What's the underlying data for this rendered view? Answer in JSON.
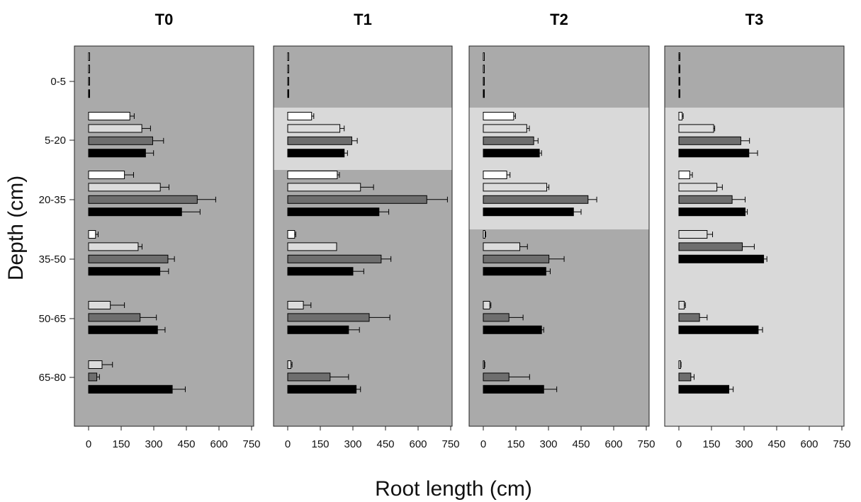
{
  "chart_data": {
    "type": "bar",
    "orientation": "horizontal",
    "xlabel": "Root length (cm)",
    "ylabel": "Depth (cm)",
    "xlim": [
      0,
      750
    ],
    "xticks": [
      "0",
      "150",
      "300",
      "450",
      "600",
      "750"
    ],
    "depth_categories": [
      "0-5",
      "5-20",
      "20-35",
      "35-50",
      "50-65",
      "65-80"
    ],
    "series_colors": [
      "#ffffff",
      "#dcdcdc",
      "#6e6e6e",
      "#000000"
    ],
    "background_colors": {
      "dark": "#aaaaaa",
      "light": "#d9d9d9"
    },
    "panels": [
      {
        "title": "T0",
        "bands": [
          {
            "from": "0-5",
            "to": "65-80",
            "shade": "dark"
          }
        ],
        "groups": [
          {
            "depth": "0-5",
            "bars": [
              {
                "series": 0,
                "value": 2,
                "error": 0
              },
              {
                "series": 1,
                "value": 2,
                "error": 0
              },
              {
                "series": 2,
                "value": 3,
                "error": 0
              },
              {
                "series": 3,
                "value": 3,
                "error": 0
              }
            ]
          },
          {
            "depth": "5-20",
            "bars": [
              {
                "series": 0,
                "value": 190,
                "error": 20
              },
              {
                "series": 1,
                "value": 245,
                "error": 40
              },
              {
                "series": 2,
                "value": 295,
                "error": 50
              },
              {
                "series": 3,
                "value": 262,
                "error": 37
              }
            ]
          },
          {
            "depth": "20-35",
            "bars": [
              {
                "series": 0,
                "value": 165,
                "error": 42
              },
              {
                "series": 1,
                "value": 330,
                "error": 40
              },
              {
                "series": 2,
                "value": 500,
                "error": 85
              },
              {
                "series": 3,
                "value": 428,
                "error": 85
              }
            ]
          },
          {
            "depth": "35-50",
            "bars": [
              {
                "series": 0,
                "value": 32,
                "error": 12
              },
              {
                "series": 1,
                "value": 228,
                "error": 18
              },
              {
                "series": 2,
                "value": 365,
                "error": 30
              },
              {
                "series": 3,
                "value": 328,
                "error": 40
              }
            ]
          },
          {
            "depth": "50-65",
            "bars": [
              {
                "series": 1,
                "value": 100,
                "error": 65
              },
              {
                "series": 2,
                "value": 237,
                "error": 75
              },
              {
                "series": 3,
                "value": 317,
                "error": 35
              }
            ]
          },
          {
            "depth": "65-80",
            "bars": [
              {
                "series": 1,
                "value": 62,
                "error": 48
              },
              {
                "series": 2,
                "value": 38,
                "error": 12
              },
              {
                "series": 3,
                "value": 385,
                "error": 60
              }
            ]
          }
        ]
      },
      {
        "title": "T1",
        "bands": [
          {
            "from": "0-5",
            "to": "0-5",
            "shade": "dark"
          },
          {
            "from": "5-20",
            "to": "5-20",
            "shade": "light"
          },
          {
            "from": "20-35",
            "to": "65-80",
            "shade": "dark"
          }
        ],
        "groups": [
          {
            "depth": "0-5",
            "bars": [
              {
                "series": 0,
                "value": 3,
                "error": 0
              },
              {
                "series": 1,
                "value": 3,
                "error": 0
              },
              {
                "series": 2,
                "value": 2,
                "error": 0
              },
              {
                "series": 3,
                "value": 2,
                "error": 0
              }
            ]
          },
          {
            "depth": "5-20",
            "bars": [
              {
                "series": 0,
                "value": 110,
                "error": 10
              },
              {
                "series": 1,
                "value": 240,
                "error": 20
              },
              {
                "series": 2,
                "value": 295,
                "error": 25
              },
              {
                "series": 3,
                "value": 260,
                "error": 15
              }
            ]
          },
          {
            "depth": "20-35",
            "bars": [
              {
                "series": 0,
                "value": 228,
                "error": 10
              },
              {
                "series": 1,
                "value": 335,
                "error": 60
              },
              {
                "series": 2,
                "value": 640,
                "error": 95
              },
              {
                "series": 3,
                "value": 420,
                "error": 45
              }
            ]
          },
          {
            "depth": "35-50",
            "bars": [
              {
                "series": 0,
                "value": 32,
                "error": 5
              },
              {
                "series": 1,
                "value": 225,
                "error": 0
              },
              {
                "series": 2,
                "value": 430,
                "error": 45
              },
              {
                "series": 3,
                "value": 300,
                "error": 50
              }
            ]
          },
          {
            "depth": "50-65",
            "bars": [
              {
                "series": 1,
                "value": 72,
                "error": 35
              },
              {
                "series": 2,
                "value": 375,
                "error": 95
              },
              {
                "series": 3,
                "value": 280,
                "error": 50
              }
            ]
          },
          {
            "depth": "65-80",
            "bars": [
              {
                "series": 1,
                "value": 15,
                "error": 5
              },
              {
                "series": 2,
                "value": 195,
                "error": 85
              },
              {
                "series": 3,
                "value": 315,
                "error": 20
              }
            ]
          }
        ]
      },
      {
        "title": "T2",
        "bands": [
          {
            "from": "0-5",
            "to": "0-5",
            "shade": "dark"
          },
          {
            "from": "5-20",
            "to": "20-35",
            "shade": "light"
          },
          {
            "from": "35-50",
            "to": "65-80",
            "shade": "dark"
          }
        ],
        "groups": [
          {
            "depth": "0-5",
            "bars": [
              {
                "series": 0,
                "value": 3,
                "error": 0
              },
              {
                "series": 1,
                "value": 2,
                "error": 0
              },
              {
                "series": 2,
                "value": 2,
                "error": 0
              },
              {
                "series": 3,
                "value": 2,
                "error": 0
              }
            ]
          },
          {
            "depth": "5-20",
            "bars": [
              {
                "series": 0,
                "value": 140,
                "error": 8
              },
              {
                "series": 1,
                "value": 200,
                "error": 12
              },
              {
                "series": 2,
                "value": 232,
                "error": 20
              },
              {
                "series": 3,
                "value": 258,
                "error": 10
              }
            ]
          },
          {
            "depth": "20-35",
            "bars": [
              {
                "series": 0,
                "value": 108,
                "error": 15
              },
              {
                "series": 1,
                "value": 292,
                "error": 10
              },
              {
                "series": 2,
                "value": 482,
                "error": 40
              },
              {
                "series": 3,
                "value": 415,
                "error": 35
              }
            ]
          },
          {
            "depth": "35-50",
            "bars": [
              {
                "series": 0,
                "value": 8,
                "error": 3
              },
              {
                "series": 1,
                "value": 168,
                "error": 35
              },
              {
                "series": 2,
                "value": 302,
                "error": 70
              },
              {
                "series": 3,
                "value": 288,
                "error": 20
              }
            ]
          },
          {
            "depth": "50-65",
            "bars": [
              {
                "series": 1,
                "value": 30,
                "error": 5
              },
              {
                "series": 2,
                "value": 118,
                "error": 65
              },
              {
                "series": 3,
                "value": 268,
                "error": 10
              }
            ]
          },
          {
            "depth": "65-80",
            "bars": [
              {
                "series": 1,
                "value": 5,
                "error": 2
              },
              {
                "series": 2,
                "value": 118,
                "error": 95
              },
              {
                "series": 3,
                "value": 278,
                "error": 60
              }
            ]
          }
        ]
      },
      {
        "title": "T3",
        "bands": [
          {
            "from": "0-5",
            "to": "0-5",
            "shade": "dark"
          },
          {
            "from": "5-20",
            "to": "65-80",
            "shade": "light"
          }
        ],
        "groups": [
          {
            "depth": "0-5",
            "bars": [
              {
                "series": 0,
                "value": 3,
                "error": 1
              },
              {
                "series": 1,
                "value": 2,
                "error": 1
              },
              {
                "series": 2,
                "value": 2,
                "error": 1
              },
              {
                "series": 3,
                "value": 2,
                "error": 1
              }
            ]
          },
          {
            "depth": "5-20",
            "bars": [
              {
                "series": 0,
                "value": 15,
                "error": 5
              },
              {
                "series": 1,
                "value": 160,
                "error": 5
              },
              {
                "series": 2,
                "value": 285,
                "error": 40
              },
              {
                "series": 3,
                "value": 322,
                "error": 40
              }
            ]
          },
          {
            "depth": "20-35",
            "bars": [
              {
                "series": 0,
                "value": 50,
                "error": 12
              },
              {
                "series": 1,
                "value": 175,
                "error": 25
              },
              {
                "series": 2,
                "value": 245,
                "error": 60
              },
              {
                "series": 3,
                "value": 305,
                "error": 10
              }
            ]
          },
          {
            "depth": "35-50",
            "bars": [
              {
                "series": 1,
                "value": 130,
                "error": 25
              },
              {
                "series": 2,
                "value": 292,
                "error": 55
              },
              {
                "series": 3,
                "value": 390,
                "error": 15
              }
            ]
          },
          {
            "depth": "50-65",
            "bars": [
              {
                "series": 1,
                "value": 25,
                "error": 5
              },
              {
                "series": 2,
                "value": 95,
                "error": 35
              },
              {
                "series": 3,
                "value": 365,
                "error": 20
              }
            ]
          },
          {
            "depth": "65-80",
            "bars": [
              {
                "series": 1,
                "value": 8,
                "error": 2
              },
              {
                "series": 2,
                "value": 55,
                "error": 15
              },
              {
                "series": 3,
                "value": 230,
                "error": 20
              }
            ]
          }
        ]
      }
    ]
  }
}
